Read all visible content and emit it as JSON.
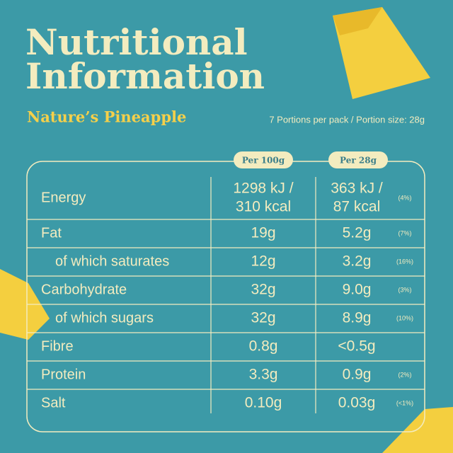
{
  "header": {
    "title": [
      "Nutritional",
      "Information"
    ],
    "subtitle": "Nature’s Pineapple",
    "portion_note": "7 Portions per pack / Portion size: 28g"
  },
  "table": {
    "columns": [
      "Per 100g",
      "Per 28g"
    ],
    "rows": [
      {
        "label": "Energy",
        "per100": [
          "1298 kJ /",
          "310 kcal"
        ],
        "per28": [
          "363 kJ /",
          "87 kcal"
        ],
        "pct": "(4%)"
      },
      {
        "label": "Fat",
        "per100": [
          "19g"
        ],
        "per28": [
          "5.2g"
        ],
        "pct": "(7%)"
      },
      {
        "label": "of which saturates",
        "indent": true,
        "per100": [
          "12g"
        ],
        "per28": [
          "3.2g"
        ],
        "pct": "(16%)"
      },
      {
        "label": "Carbohydrate",
        "per100": [
          "32g"
        ],
        "per28": [
          "9.0g"
        ],
        "pct": "(3%)"
      },
      {
        "label": "of which sugars",
        "indent": true,
        "per100": [
          "32g"
        ],
        "per28": [
          "8.9g"
        ],
        "pct": "(10%)"
      },
      {
        "label": "Fibre",
        "per100": [
          "0.8g"
        ],
        "per28": [
          "<0.5g"
        ]
      },
      {
        "label": "Protein",
        "per100": [
          "3.3g"
        ],
        "per28": [
          "0.9g"
        ],
        "pct": "(2%)"
      },
      {
        "label": "Salt",
        "per100": [
          "0.10g"
        ],
        "per28": [
          "0.03g"
        ],
        "pct": "(<1%)"
      }
    ]
  }
}
